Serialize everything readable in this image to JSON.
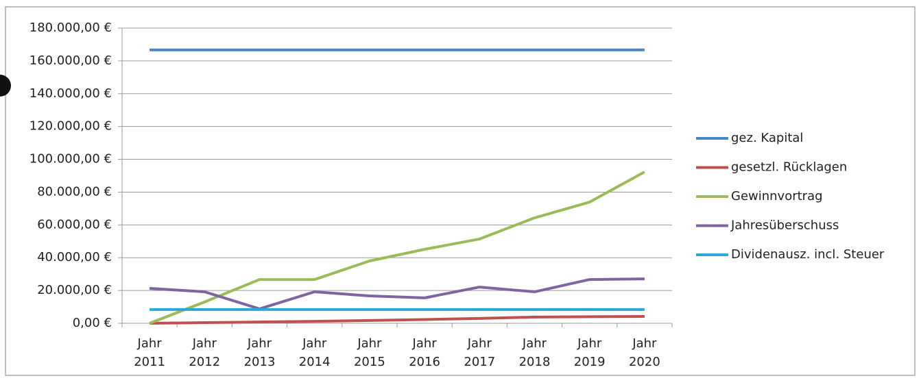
{
  "chart_data": {
    "type": "line",
    "categories": [
      "Jahr 2011",
      "Jahr 2012",
      "Jahr 2013",
      "Jahr 2014",
      "Jahr 2015",
      "Jahr 2016",
      "Jahr 2017",
      "Jahr 2018",
      "Jahr 2019",
      "Jahr 2020"
    ],
    "series": [
      {
        "name": "gez. Kapital",
        "color": "#4a86c8",
        "values": [
          166700,
          166700,
          166700,
          166700,
          166700,
          166700,
          166700,
          166700,
          166700,
          166700
        ]
      },
      {
        "name": "gesetzl. Rücklagen",
        "color": "#c0504d",
        "values": [
          0,
          400,
          800,
          1200,
          1700,
          2300,
          3000,
          3800,
          4000,
          4200
        ]
      },
      {
        "name": "Gewinnvortrag",
        "color": "#9bbb59",
        "values": [
          0,
          13000,
          26700,
          26700,
          38000,
          45100,
          51400,
          64300,
          73900,
          92300
        ]
      },
      {
        "name": "Jahresüberschuss",
        "color": "#8064a2",
        "values": [
          21300,
          19200,
          8800,
          19200,
          16700,
          15500,
          22100,
          19200,
          26700,
          27100
        ]
      },
      {
        "name": "Dividenausz. incl. Steuer",
        "color": "#2aa9d9",
        "values": [
          8400,
          8400,
          8400,
          8400,
          8400,
          8400,
          8400,
          8400,
          8400,
          8400
        ]
      }
    ],
    "ylim": [
      0,
      180000
    ],
    "yticks": [
      {
        "value": 0,
        "label": "0,00 €"
      },
      {
        "value": 20000,
        "label": "20.000,00 €"
      },
      {
        "value": 40000,
        "label": "40.000,00 €"
      },
      {
        "value": 60000,
        "label": "60.000,00 €"
      },
      {
        "value": 80000,
        "label": "80.000,00 €"
      },
      {
        "value": 100000,
        "label": "100.000,00 €"
      },
      {
        "value": 120000,
        "label": "120.000,00 €"
      },
      {
        "value": 140000,
        "label": "140.000,00 €"
      },
      {
        "value": 160000,
        "label": "160.000,00 €"
      },
      {
        "value": 180000,
        "label": "180.000,00 €"
      }
    ],
    "grid": true,
    "legend": "right"
  }
}
